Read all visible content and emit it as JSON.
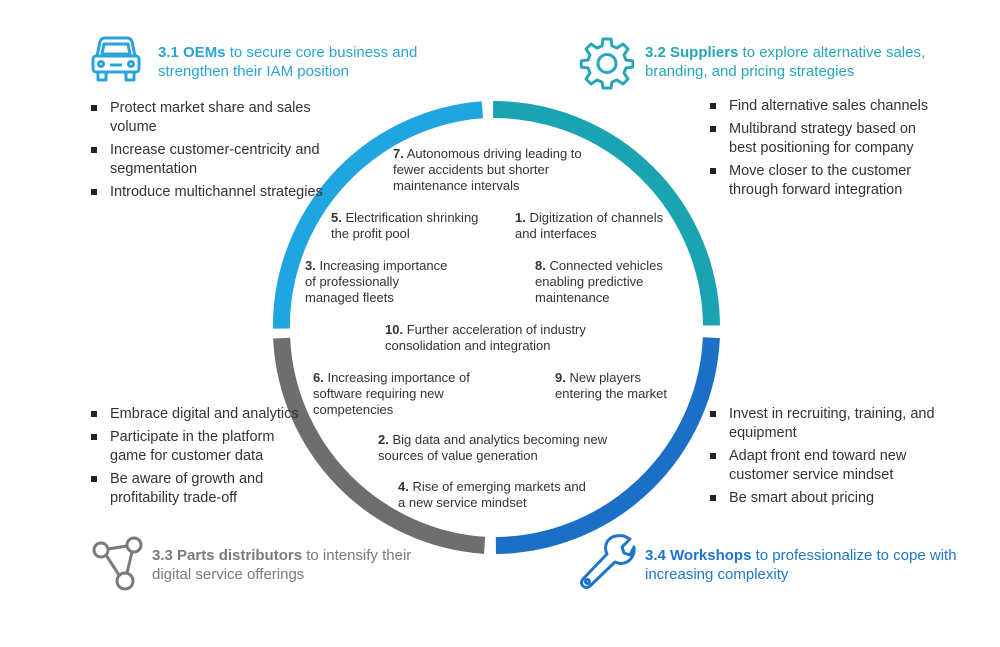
{
  "quadrants": {
    "oems": {
      "bold": "3.1 OEMs",
      "rest": " to secure core business and strengthen their IAM position",
      "bullets": [
        "Protect market share and sales volume",
        "Increase customer-centricity and segmentation",
        "Introduce multichannel strategies"
      ],
      "color": "#2aa3dc",
      "icon": "car-icon"
    },
    "suppliers": {
      "bold": "3.2 Suppliers",
      "rest": " to explore alternative sales, branding, and pricing strategies",
      "bullets": [
        "Find alternative sales channels",
        "Multibrand strategy based on best positioning for company",
        "Move closer to the customer through forward integration"
      ],
      "color": "#25a7b8",
      "icon": "gear-icon"
    },
    "parts": {
      "bold": "3.3 Parts distributors",
      "rest": " to intensify their digital service offerings",
      "bullets": [
        "Embrace digital and analytics",
        "Participate in the platform game for customer data",
        "Be aware of growth and profitability trade-off"
      ],
      "color": "#7a7a7a",
      "icon": "network-icon"
    },
    "workshops": {
      "bold": "3.4 Workshops",
      "rest": " to professionalize to cope with increasing complexity",
      "bullets": [
        "Invest in recruiting, training, and equipment",
        "Adapt front end toward new customer service mindset",
        "Be smart about pricing"
      ],
      "color": "#1f75c9",
      "icon": "wrench-icon"
    }
  },
  "drivers": [
    {
      "num": "7.",
      "text": " Autonomous driving leading to fewer accidents but shorter maintenance intervals"
    },
    {
      "num": "5.",
      "text": " Electrification shrinking the profit pool"
    },
    {
      "num": "1.",
      "text": " Digitization of channels and interfaces"
    },
    {
      "num": "3.",
      "text": " Increasing importance of professionally managed fleets"
    },
    {
      "num": "8.",
      "text": " Connected vehicles enabling predictive maintenance"
    },
    {
      "num": "10.",
      "text": " Further acceleration of industry consolidation and integration"
    },
    {
      "num": "6.",
      "text": " Increasing importance of software requiring new competencies"
    },
    {
      "num": "9.",
      "text": " New players entering the market"
    },
    {
      "num": "2.",
      "text": " Big data and analytics becoming new sources of value generation"
    },
    {
      "num": "4.",
      "text": " Rise of emerging markets and a new service mindset"
    }
  ],
  "ring_colors": {
    "oems": "#1fa6e0",
    "suppliers": "#1aa3b0",
    "workshops": "#1c6fc6",
    "parts": "#6e6e6e"
  }
}
